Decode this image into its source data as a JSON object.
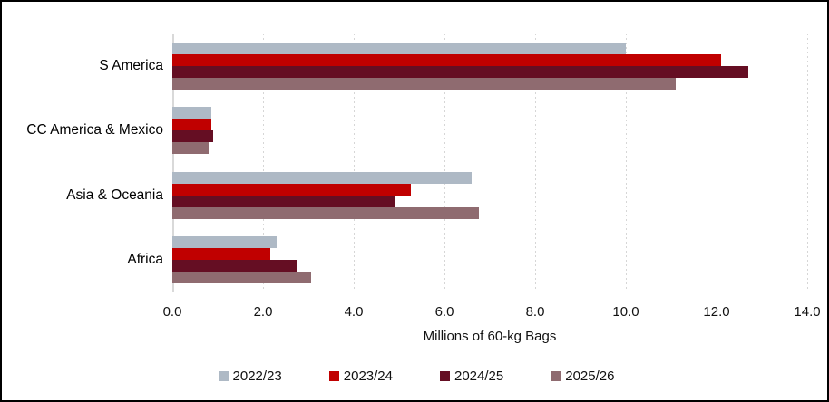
{
  "chart_data": {
    "type": "bar",
    "orientation": "horizontal",
    "title": "",
    "xlabel": "Millions of 60-kg Bags",
    "ylabel": "",
    "categories": [
      "S America",
      "CC America & Mexico",
      "Asia & Oceania",
      "Africa"
    ],
    "series": [
      {
        "name": "2022/23",
        "color": "#aeb9c5",
        "values": [
          10.0,
          0.85,
          6.6,
          2.3
        ]
      },
      {
        "name": "2023/24",
        "color": "#c00000",
        "values": [
          12.1,
          0.85,
          5.25,
          2.15
        ]
      },
      {
        "name": "2024/25",
        "color": "#650e23",
        "values": [
          12.7,
          0.9,
          4.9,
          2.75
        ]
      },
      {
        "name": "2025/26",
        "color": "#8f6b70",
        "values": [
          11.1,
          0.8,
          6.75,
          3.05
        ]
      }
    ],
    "x_axis": {
      "min": 0,
      "max": 14,
      "tick_interval": 2,
      "tick_labels": [
        "0.0",
        "2.0",
        "4.0",
        "6.0",
        "8.0",
        "10.0",
        "12.0",
        "14.0"
      ]
    },
    "legend": {
      "position": "bottom",
      "entries": [
        "2022/23",
        "2023/24",
        "2024/25",
        "2025/26"
      ]
    },
    "grid": {
      "vertical_dashed": true,
      "color": "#d6d6d6",
      "axis_line_color": "#d9d9d9"
    }
  }
}
